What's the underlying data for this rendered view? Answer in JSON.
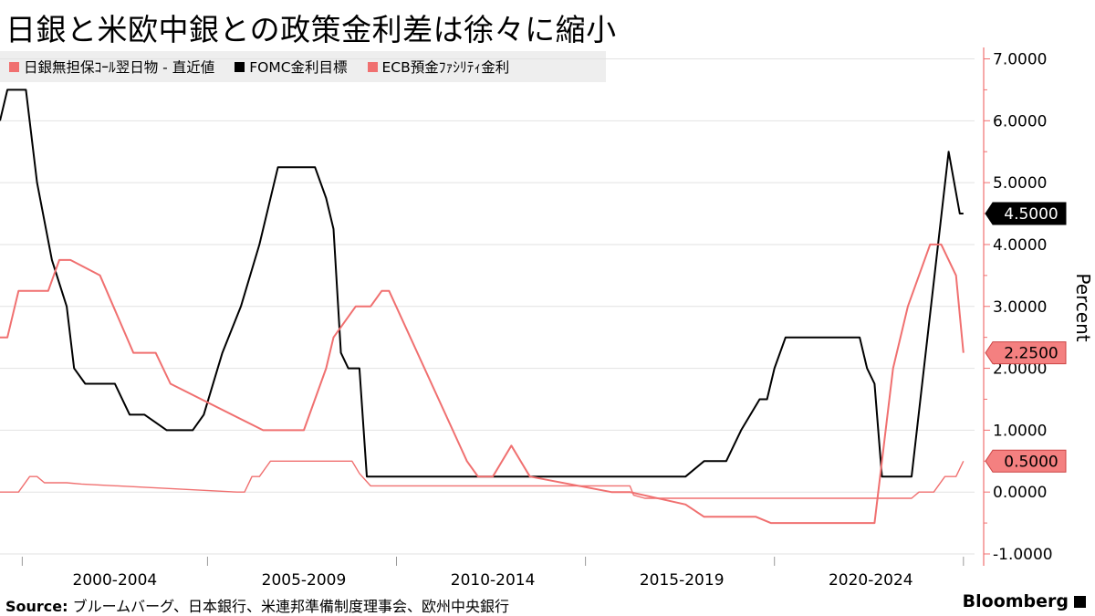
{
  "title": "日銀と米欧中銀との政策金利差は徐々に縮小",
  "source_label": "Source:",
  "source_text": " ブルームバーグ、日本銀行、米連邦準備制度理事会、欧州中央銀行",
  "brand": "Bloomberg",
  "colors": {
    "boj": "#f07070",
    "fomc": "#000000",
    "ecb": "#f07070",
    "axis": "#f07070"
  },
  "chart_data": {
    "type": "line",
    "title": "日銀と米欧中銀との政策金利差は徐々に縮小",
    "ylabel": "Percent",
    "ylim": [
      -1,
      7
    ],
    "y_ticks": [
      "7.0000",
      "6.0000",
      "5.0000",
      "4.0000",
      "3.0000",
      "2.0000",
      "1.0000",
      "0.0000",
      "-1.0000"
    ],
    "y_tick_values": [
      7,
      6,
      5,
      4,
      3,
      2,
      1,
      0,
      -1
    ],
    "xlim": [
      1999.0,
      2025.3
    ],
    "x_tick_labels": [
      "2000-2004",
      "2005-2009",
      "2010-2014",
      "2015-2019",
      "2020-2024"
    ],
    "x_tick_centers": [
      2002.1,
      2007.2,
      2012.3,
      2017.4,
      2022.5
    ],
    "x_tick_boundaries": [
      1999.6,
      2004.6,
      2009.7,
      2014.8,
      2019.9,
      2025.0
    ],
    "legend_position": "top-left",
    "gridlines": "horizontal",
    "end_labels": [
      {
        "series": "FOMC金利目標",
        "text": "4.5000",
        "value": 4.5
      },
      {
        "series": "ECB預金ﾌｧｼﾘﾃｨ金利",
        "text": "2.2500",
        "value": 2.25
      },
      {
        "series": "日銀無担保ｺｰﾙ翌日物 - 直近値",
        "text": "0.5000",
        "value": 0.5
      }
    ],
    "series": [
      {
        "name": "日銀無担保ｺｰﾙ翌日物 - 直近値",
        "key": "boj",
        "x": [
          1999.0,
          1999.5,
          1999.8,
          2000.0,
          2000.2,
          2000.8,
          2001.2,
          2005.4,
          2005.6,
          2005.8,
          2006.0,
          2006.3,
          2006.6,
          2007.0,
          2008.5,
          2008.7,
          2009.0,
          2010.0,
          2012.0,
          2014.0,
          2015.0,
          2016.0,
          2016.1,
          2016.4,
          2018.0,
          2020.0,
          2022.0,
          2023.2,
          2023.6,
          2023.8,
          2024.2,
          2024.5,
          2024.8,
          2025.0
        ],
        "y": [
          0.0,
          0.0,
          0.25,
          0.25,
          0.15,
          0.15,
          0.13,
          0.0,
          0.0,
          0.25,
          0.25,
          0.5,
          0.5,
          0.5,
          0.5,
          0.3,
          0.1,
          0.1,
          0.1,
          0.1,
          0.1,
          0.1,
          -0.05,
          -0.1,
          -0.1,
          -0.1,
          -0.1,
          -0.1,
          -0.1,
          0.0,
          0.0,
          0.25,
          0.25,
          0.5
        ]
      },
      {
        "name": "FOMC金利目標",
        "key": "fomc",
        "x": [
          1999.0,
          1999.2,
          1999.7,
          2000.0,
          2000.4,
          2000.8,
          2001.0,
          2001.3,
          2001.5,
          2001.8,
          2002.1,
          2002.5,
          2002.9,
          2003.5,
          2004.2,
          2004.5,
          2005.0,
          2005.5,
          2006.0,
          2006.5,
          2007.5,
          2007.8,
          2008.0,
          2008.2,
          2008.4,
          2008.7,
          2008.9,
          2017.5,
          2018.0,
          2018.3,
          2018.6,
          2019.0,
          2019.5,
          2019.7,
          2019.9,
          2020.2,
          2022.0,
          2022.2,
          2022.4,
          2022.6,
          2022.8,
          2023.2,
          2023.6,
          2024.6,
          2024.9,
          2025.0
        ],
        "y": [
          6.0,
          6.5,
          6.5,
          5.0,
          3.75,
          3.0,
          2.0,
          1.75,
          1.75,
          1.75,
          1.75,
          1.25,
          1.25,
          1.0,
          1.0,
          1.25,
          2.25,
          3.0,
          4.0,
          5.25,
          5.25,
          4.75,
          4.25,
          2.25,
          2.0,
          2.0,
          0.25,
          0.25,
          0.5,
          0.5,
          0.5,
          1.0,
          1.5,
          1.5,
          2.0,
          2.5,
          2.5,
          2.5,
          2.0,
          1.75,
          0.25,
          0.25,
          0.25,
          5.5,
          4.5,
          4.5
        ]
      },
      {
        "name": "ECB預金ﾌｧｼﾘﾃｨ金利",
        "key": "ecb",
        "x": [
          1999.0,
          1999.2,
          1999.5,
          2000.3,
          2000.6,
          2000.9,
          2001.7,
          2002.6,
          2002.9,
          2003.2,
          2003.6,
          2006.1,
          2006.6,
          2007.2,
          2007.8,
          2008.0,
          2008.6,
          2009.0,
          2009.3,
          2009.5,
          2011.6,
          2011.9,
          2012.3,
          2012.8,
          2013.3,
          2015.5,
          2016.0,
          2017.5,
          2018.0,
          2019.4,
          2019.8,
          2022.6,
          2023.1,
          2023.5,
          2024.1,
          2024.4,
          2024.8,
          2025.0
        ],
        "y": [
          2.5,
          2.5,
          3.25,
          3.25,
          3.75,
          3.75,
          3.5,
          2.25,
          2.25,
          2.25,
          1.75,
          1.0,
          1.0,
          1.0,
          2.0,
          2.5,
          3.0,
          3.0,
          3.25,
          3.25,
          0.5,
          0.25,
          0.25,
          0.75,
          0.25,
          0.0,
          0.0,
          -0.2,
          -0.4,
          -0.4,
          -0.5,
          -0.5,
          2.0,
          3.0,
          4.0,
          4.0,
          3.5,
          2.25
        ]
      }
    ]
  }
}
